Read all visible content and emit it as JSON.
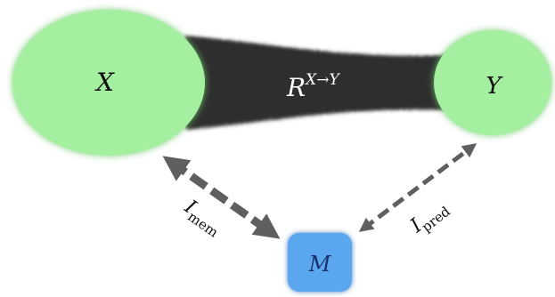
{
  "nodes": {
    "x": {
      "label": "X",
      "fill": "#a4f0a0",
      "glow": "#6ec86a"
    },
    "y": {
      "label": "Y",
      "fill": "#a4f0a0",
      "glow": "#6ec86a"
    },
    "m": {
      "label": "M",
      "fill": "#5aa6ef",
      "glow": "#2f6fb8"
    }
  },
  "channel": {
    "label_base": "R",
    "label_superscript": "X→Y",
    "fill": "#2f2f2f"
  },
  "edges": {
    "mem": {
      "label_base": "I",
      "label_subscript": "mem",
      "color": "#5f5f5f"
    },
    "pred": {
      "label_base": "I",
      "label_subscript": "pred",
      "color": "#5f5f5f"
    }
  },
  "colors": {
    "text_dark": "#111111",
    "text_light": "#ffffff",
    "text_blue": "#1a2f6b"
  }
}
